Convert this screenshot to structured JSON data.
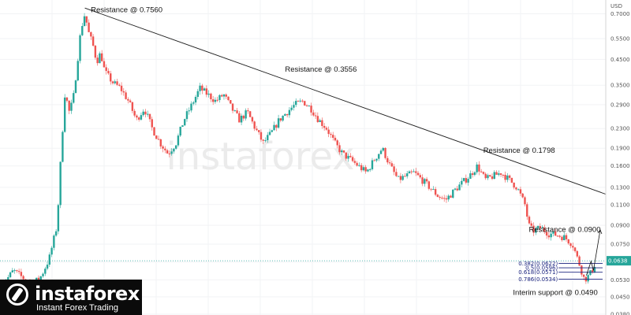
{
  "chart_data": {
    "type": "candlestick",
    "currency_label": "USD",
    "y_scale": "log",
    "ylim": [
      0.0377,
      0.8
    ],
    "y_ticks": [
      "0.7000",
      "0.5500",
      "0.4500",
      "0.3500",
      "0.2900",
      "0.2300",
      "0.1900",
      "0.1600",
      "0.1300",
      "0.1100",
      "0.0900",
      "0.0750",
      "0.0630",
      "0.0530",
      "0.0450",
      "0.0380"
    ],
    "current_price_label": "0.0638",
    "current_price": 0.0638,
    "colors": {
      "up": "#26a69a",
      "down": "#ef5350",
      "trend": "#1b1b1b",
      "fib": "#1a237e",
      "current": "#26a69a"
    },
    "price_path": [
      {
        "x": 0,
        "y": 0.05
      },
      {
        "x": 3,
        "y": 0.058
      },
      {
        "x": 6,
        "y": 0.053
      },
      {
        "x": 8,
        "y": 0.051
      },
      {
        "x": 10,
        "y": 0.055
      },
      {
        "x": 12,
        "y": 0.065
      },
      {
        "x": 14,
        "y": 0.09
      },
      {
        "x": 15,
        "y": 0.18
      },
      {
        "x": 16,
        "y": 0.33
      },
      {
        "x": 17,
        "y": 0.27
      },
      {
        "x": 18,
        "y": 0.3
      },
      {
        "x": 19,
        "y": 0.42
      },
      {
        "x": 20,
        "y": 0.6
      },
      {
        "x": 21,
        "y": 0.7
      },
      {
        "x": 22,
        "y": 0.58
      },
      {
        "x": 23,
        "y": 0.52
      },
      {
        "x": 24,
        "y": 0.44
      },
      {
        "x": 25,
        "y": 0.48
      },
      {
        "x": 26,
        "y": 0.4
      },
      {
        "x": 28,
        "y": 0.36
      },
      {
        "x": 30,
        "y": 0.34
      },
      {
        "x": 32,
        "y": 0.3
      },
      {
        "x": 34,
        "y": 0.25
      },
      {
        "x": 36,
        "y": 0.28
      },
      {
        "x": 38,
        "y": 0.23
      },
      {
        "x": 40,
        "y": 0.2
      },
      {
        "x": 42,
        "y": 0.18
      },
      {
        "x": 44,
        "y": 0.2
      },
      {
        "x": 46,
        "y": 0.25
      },
      {
        "x": 48,
        "y": 0.29
      },
      {
        "x": 50,
        "y": 0.34
      },
      {
        "x": 52,
        "y": 0.32
      },
      {
        "x": 54,
        "y": 0.3
      },
      {
        "x": 56,
        "y": 0.32
      },
      {
        "x": 58,
        "y": 0.28
      },
      {
        "x": 60,
        "y": 0.25
      },
      {
        "x": 62,
        "y": 0.27
      },
      {
        "x": 64,
        "y": 0.23
      },
      {
        "x": 66,
        "y": 0.2
      },
      {
        "x": 68,
        "y": 0.22
      },
      {
        "x": 70,
        "y": 0.25
      },
      {
        "x": 72,
        "y": 0.27
      },
      {
        "x": 74,
        "y": 0.29
      },
      {
        "x": 76,
        "y": 0.3
      },
      {
        "x": 78,
        "y": 0.28
      },
      {
        "x": 80,
        "y": 0.25
      },
      {
        "x": 82,
        "y": 0.23
      },
      {
        "x": 84,
        "y": 0.2
      },
      {
        "x": 86,
        "y": 0.18
      },
      {
        "x": 88,
        "y": 0.17
      },
      {
        "x": 90,
        "y": 0.16
      },
      {
        "x": 92,
        "y": 0.15
      },
      {
        "x": 94,
        "y": 0.17
      },
      {
        "x": 96,
        "y": 0.19
      },
      {
        "x": 98,
        "y": 0.16
      },
      {
        "x": 100,
        "y": 0.14
      },
      {
        "x": 102,
        "y": 0.145
      },
      {
        "x": 104,
        "y": 0.15
      },
      {
        "x": 106,
        "y": 0.14
      },
      {
        "x": 108,
        "y": 0.13
      },
      {
        "x": 110,
        "y": 0.12
      },
      {
        "x": 112,
        "y": 0.115
      },
      {
        "x": 114,
        "y": 0.125
      },
      {
        "x": 116,
        "y": 0.135
      },
      {
        "x": 118,
        "y": 0.145
      },
      {
        "x": 120,
        "y": 0.16
      },
      {
        "x": 122,
        "y": 0.14
      },
      {
        "x": 124,
        "y": 0.145
      },
      {
        "x": 126,
        "y": 0.15
      },
      {
        "x": 128,
        "y": 0.14
      },
      {
        "x": 130,
        "y": 0.13
      },
      {
        "x": 132,
        "y": 0.11
      },
      {
        "x": 133,
        "y": 0.09
      },
      {
        "x": 134,
        "y": 0.085
      },
      {
        "x": 136,
        "y": 0.088
      },
      {
        "x": 138,
        "y": 0.083
      },
      {
        "x": 140,
        "y": 0.082
      },
      {
        "x": 142,
        "y": 0.08
      },
      {
        "x": 144,
        "y": 0.075
      },
      {
        "x": 146,
        "y": 0.06
      },
      {
        "x": 147,
        "y": 0.053
      },
      {
        "x": 148,
        "y": 0.055
      },
      {
        "x": 149,
        "y": 0.058
      },
      {
        "x": 150,
        "y": 0.0638
      }
    ],
    "x_range": [
      0,
      152
    ],
    "trendline": {
      "from": {
        "x": 21,
        "y": 0.74
      },
      "to": {
        "x": 152,
        "y": 0.118
      }
    },
    "annotations": [
      {
        "text": "Resistance @ 0.7560",
        "x": 22.5,
        "y": 0.71
      },
      {
        "text": "Resistance @ 0.3556",
        "x": 71.5,
        "y": 0.4
      },
      {
        "text": "Resistance @ 0.1798",
        "x": 121.5,
        "y": 0.182
      },
      {
        "text": "Resistance @ 0.0900",
        "x": 133,
        "y": 0.0845
      },
      {
        "text": "Interim support @ 0.0490",
        "x": 129,
        "y": 0.0458
      }
    ],
    "fib_levels": [
      {
        "label": "0.382(0.0622)",
        "price": 0.0622
      },
      {
        "label": "0.5(0.0596)",
        "price": 0.0596
      },
      {
        "label": "0.618(0.0571)",
        "price": 0.0571
      },
      {
        "label": "0.786(0.0534)",
        "price": 0.0534
      }
    ]
  },
  "logo": {
    "name": "instaforex",
    "tagline": "Instant Forex Trading"
  },
  "watermark": "instaforex"
}
